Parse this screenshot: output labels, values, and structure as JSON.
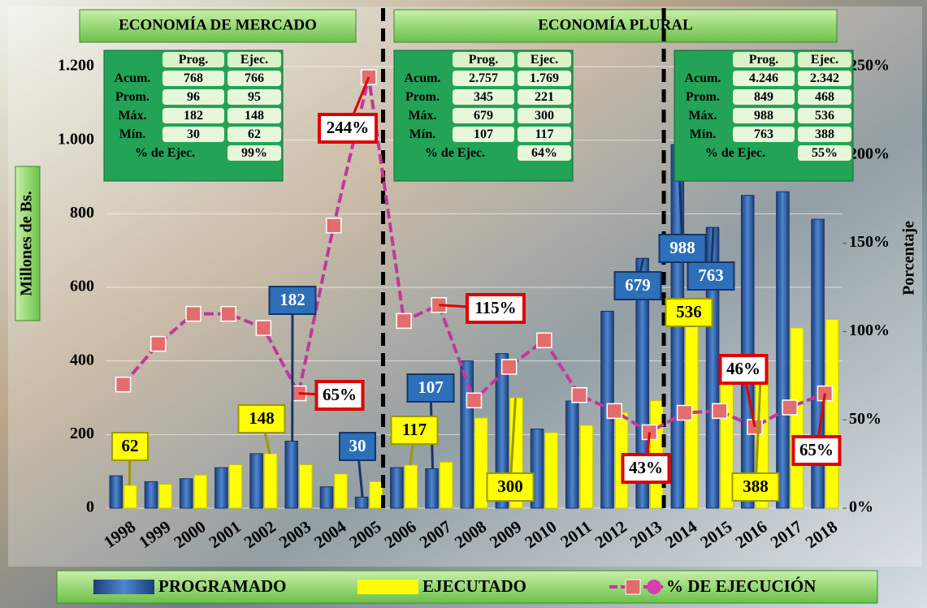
{
  "chart_data": {
    "type": "bar-line",
    "sections": [
      "ECONOMÍA DE MERCADO",
      "ECONOMÍA PLURAL"
    ],
    "categories": [
      "1998",
      "1999",
      "2000",
      "2001",
      "2002",
      "2003",
      "2004",
      "2005",
      "2006",
      "2007",
      "2008",
      "2009",
      "2010",
      "2011",
      "2012",
      "2013",
      "2014",
      "2015",
      "2016",
      "2017",
      "2018"
    ],
    "series": [
      {
        "name": "PROGRAMADO",
        "color": "#2d5fa8",
        "values": [
          88,
          72,
          80,
          110,
          148,
          182,
          58,
          30,
          110,
          107,
          400,
          420,
          215,
          291,
          535,
          679,
          988,
          763,
          850,
          860,
          785
        ],
        "value_labels": [
          null,
          null,
          null,
          null,
          null,
          "182",
          null,
          "30",
          null,
          "107",
          null,
          null,
          null,
          null,
          null,
          "679",
          "988",
          "763",
          null,
          null,
          null
        ]
      },
      {
        "name": "EJECUTADO",
        "color": "#ffff00",
        "values": [
          62,
          65,
          90,
          118,
          148,
          118,
          93,
          72,
          117,
          125,
          245,
          300,
          205,
          225,
          260,
          292,
          536,
          415,
          388,
          490,
          513
        ],
        "value_labels": [
          "62",
          null,
          null,
          null,
          "148",
          null,
          null,
          null,
          "117",
          null,
          null,
          "300",
          null,
          null,
          null,
          null,
          "536",
          null,
          "388",
          null,
          null
        ]
      },
      {
        "name": "% DE EJECUCIÓN",
        "color": "#c0399a",
        "axis": "y2",
        "values": [
          70,
          93,
          110,
          110,
          102,
          65,
          160,
          244,
          106,
          115,
          61,
          80,
          95,
          64,
          55,
          43,
          54,
          55,
          46,
          57,
          65
        ],
        "value_labels": [
          null,
          null,
          null,
          null,
          null,
          "65%",
          null,
          "244%",
          null,
          "115%",
          null,
          null,
          null,
          null,
          null,
          "43%",
          null,
          null,
          "46%",
          null,
          "65%"
        ]
      }
    ],
    "ylabel": "Millones de Bs.",
    "y2label": "Porcentaje",
    "ylim": [
      0,
      1200
    ],
    "yticks": [
      0,
      200,
      400,
      600,
      800,
      {
        "value": 1000,
        "label": "1.000"
      },
      {
        "value": 1200,
        "label": "1.200"
      }
    ],
    "y2lim": [
      0,
      250
    ],
    "y2ticks": [
      {
        "value": 0,
        "label": "0%"
      },
      {
        "value": 50,
        "label": "50%"
      },
      {
        "value": 100,
        "label": "100%"
      },
      {
        "value": 150,
        "label": "150%"
      },
      {
        "value": 200,
        "label": "200%"
      },
      {
        "value": 250,
        "label": "250%"
      }
    ],
    "grid": true,
    "tables": [
      {
        "header": [
          "Prog.",
          "Ejec."
        ],
        "rows": [
          [
            "Acum.",
            "768",
            "766"
          ],
          [
            "Prom.",
            "96",
            "95"
          ],
          [
            "Máx.",
            "182",
            "148"
          ],
          [
            "Mín.",
            "30",
            "62"
          ]
        ],
        "footer": [
          "% de Ejec.",
          "99%"
        ]
      },
      {
        "header": [
          "Prog.",
          "Ejec."
        ],
        "rows": [
          [
            "Acum.",
            "2.757",
            "1.769"
          ],
          [
            "Prom.",
            "345",
            "221"
          ],
          [
            "Máx.",
            "679",
            "300"
          ],
          [
            "Mín.",
            "107",
            "117"
          ]
        ],
        "footer": [
          "% de Ejec.",
          "64%"
        ]
      },
      {
        "header": [
          "Prog.",
          "Ejec."
        ],
        "rows": [
          [
            "Acum.",
            "4.246",
            "2.342"
          ],
          [
            "Prom.",
            "849",
            "468"
          ],
          [
            "Máx.",
            "988",
            "536"
          ],
          [
            "Mín.",
            "763",
            "388"
          ]
        ],
        "footer": [
          "% de Ejec.",
          "55%"
        ]
      }
    ]
  }
}
